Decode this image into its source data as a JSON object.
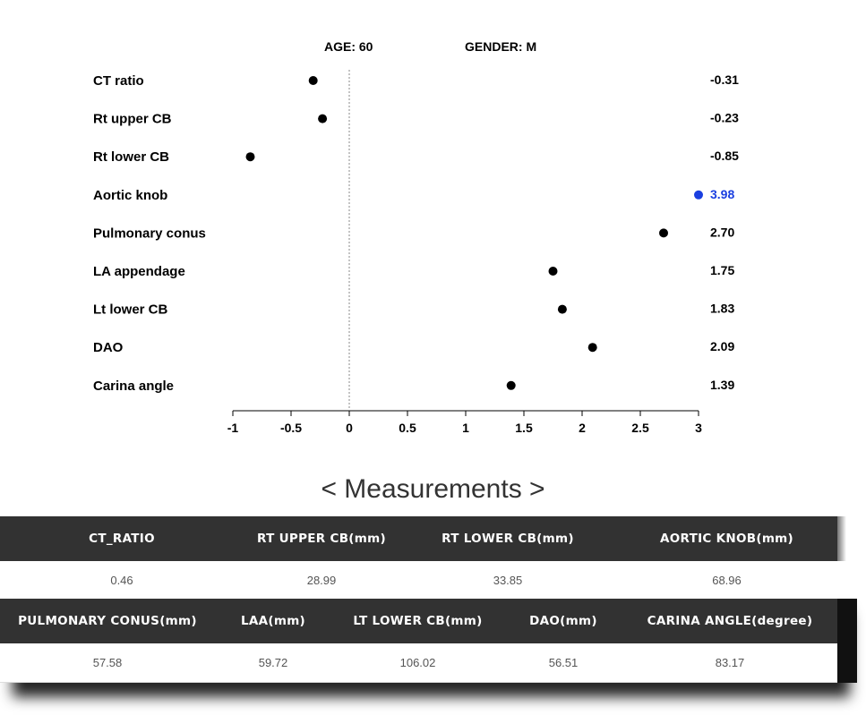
{
  "header": {
    "age": "AGE: 60",
    "gender": "GENDER: M"
  },
  "chart_data": {
    "type": "scatter",
    "categories": [
      "CT ratio",
      "Rt upper CB",
      "Rt lower CB",
      "Aortic knob",
      "Pulmonary conus",
      "LA appendage",
      "Lt lower CB",
      "DAO",
      "Carina angle"
    ],
    "values": [
      -0.31,
      -0.23,
      -0.85,
      3.98,
      2.7,
      1.75,
      1.83,
      2.09,
      1.39
    ],
    "value_labels": [
      "-0.31",
      "-0.23",
      "-0.85",
      "3.98",
      "2.70",
      "1.75",
      "1.83",
      "2.09",
      "1.39"
    ],
    "highlighted": [
      false,
      false,
      false,
      true,
      false,
      false,
      false,
      false,
      false
    ],
    "xlim": [
      -1,
      3
    ],
    "xticks": [
      "-1",
      "-0.5",
      "0",
      "0.5",
      "1",
      "1.5",
      "2",
      "2.5",
      "3"
    ],
    "reference_line": 0,
    "grid": false,
    "colors": {
      "normal": "#000000",
      "highlight": "#1a3fe0"
    }
  },
  "measurements": {
    "title": "< Measurements >",
    "row1": {
      "headers": [
        "CT_RATIO",
        "RT UPPER CB(mm)",
        "RT LOWER CB(mm)",
        "AORTIC KNOB(mm)"
      ],
      "values": [
        "0.46",
        "28.99",
        "33.85",
        "68.96"
      ]
    },
    "row2": {
      "headers": [
        "PULMONARY CONUS(mm)",
        "LAA(mm)",
        "LT LOWER CB(mm)",
        "DAO(mm)",
        "CARINA ANGLE(degree)"
      ],
      "values": [
        "57.58",
        "59.72",
        "106.02",
        "56.51",
        "83.17"
      ]
    }
  }
}
